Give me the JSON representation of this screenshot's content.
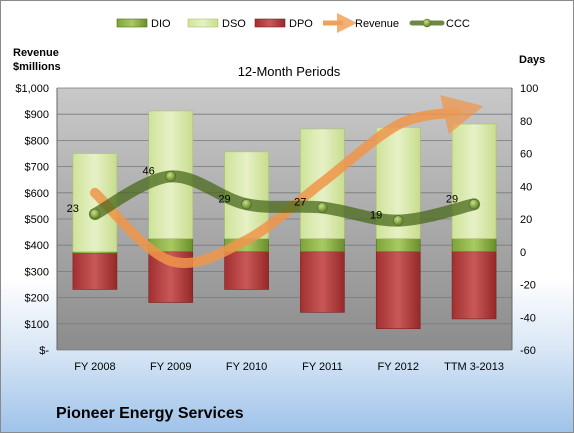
{
  "chart_data": {
    "type": "bar",
    "title": "12-Month Periods",
    "company": "Pioneer Energy Services",
    "y_left_label_line1": "Revenue",
    "y_left_label_line2": "$millions",
    "y_right_label": "Days",
    "y_left_ticks": [
      "$-",
      "$100",
      "$200",
      "$300",
      "$400",
      "$500",
      "$600",
      "$700",
      "$800",
      "$900",
      "$1,000"
    ],
    "y_right_ticks": [
      "-60",
      "-40",
      "-20",
      "0",
      "20",
      "40",
      "60",
      "80",
      "100"
    ],
    "y_left_range": [
      0,
      1000
    ],
    "y_right_range": [
      -60,
      100
    ],
    "categories": [
      "FY 2008",
      "FY 2009",
      "FY 2010",
      "FY 2011",
      "FY 2012",
      "TTM 3-2013"
    ],
    "legend": [
      "DIO",
      "DSO",
      "DPO",
      "Revenue",
      "CCC"
    ],
    "legend_position": "top",
    "series": [
      {
        "name": "DIO",
        "axis": "right",
        "values": [
          -1,
          8,
          8,
          8,
          8,
          8
        ]
      },
      {
        "name": "DSO",
        "axis": "right",
        "values": [
          60,
          78,
          53,
          67,
          68,
          70
        ]
      },
      {
        "name": "DPO",
        "axis": "right",
        "values": [
          -23,
          -31,
          -23,
          -37,
          -47,
          -41
        ]
      },
      {
        "name": "Revenue",
        "axis": "left",
        "values": [
          600,
          340,
          420,
          640,
          860,
          870
        ]
      },
      {
        "name": "CCC",
        "axis": "right",
        "values": [
          23,
          46,
          29,
          27,
          19,
          29
        ]
      }
    ],
    "ccc_labels": [
      "23",
      "46",
      "29",
      "27",
      "19",
      "29"
    ],
    "colors": {
      "DIO": "#6a8e2a",
      "DIO_light": "#a8c660",
      "DSO": "#d6e8a4",
      "DSO_edge": "#b5cf7a",
      "DPO": "#a83232",
      "DPO_light": "#d06464",
      "Revenue": "#f0964a",
      "CCC": "#4a6a1c",
      "plot_bg": "#9a9a9a"
    },
    "grid": true
  }
}
